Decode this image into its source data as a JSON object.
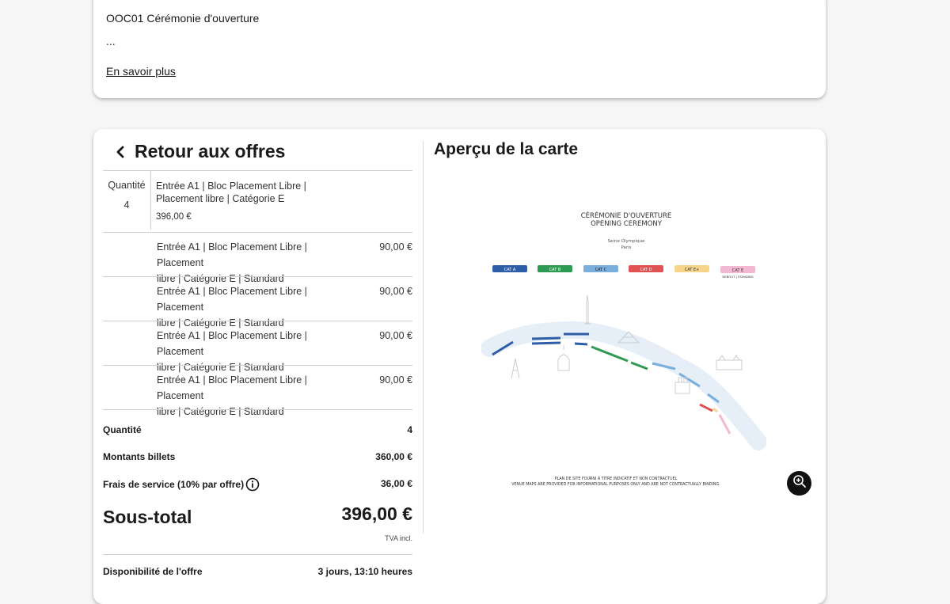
{
  "event": {
    "title": "OOC01 Cérémonie d'ouverture",
    "ellipsis": "...",
    "more_link": "En savoir plus"
  },
  "offers": {
    "back_label": "Retour aux offres",
    "quantity_label": "Quantité",
    "quantity_value": "4",
    "main_offer_line1": "Entrée A1 | Bloc Placement Libre |",
    "main_offer_line2": "Placement libre | Catégorie E",
    "main_offer_price": "396,00 €",
    "items": [
      {
        "line1": "Entrée A1 | Bloc Placement Libre | Placement",
        "line2": "libre | Catégorie E | Standard",
        "price": "90,00 €"
      },
      {
        "line1": "Entrée A1 | Bloc Placement Libre | Placement",
        "line2": "libre | Catégorie E | Standard",
        "price": "90,00 €"
      },
      {
        "line1": "Entrée A1 | Bloc Placement Libre | Placement",
        "line2": "libre | Catégorie E | Standard",
        "price": "90,00 €"
      },
      {
        "line1": "Entrée A1 | Bloc Placement Libre | Placement",
        "line2": "libre | Catégorie E | Standard",
        "price": "90,00 €"
      }
    ]
  },
  "summary": {
    "quantity_label": "Quantité",
    "quantity_value": "4",
    "tickets_label": "Montants billets",
    "tickets_value": "360,00 €",
    "fees_label": "Frais de service (10% par offre)",
    "fees_value": "36,00 €",
    "subtotal_label": "Sous-total",
    "subtotal_value": "396,00 €",
    "tva": "TVA incl.",
    "availability_label": "Disponibilité de l'offre",
    "availability_value": "3 jours, 13:10 heures"
  },
  "map": {
    "title": "Aperçu de la carte",
    "heading_fr": "CÉRÉMONIE D'OUVERTURE",
    "heading_en": "OPENING CEREMONY",
    "venue_line1": "Seine Olympique",
    "venue_line2": "Paris",
    "categories": [
      {
        "label": "CAT A",
        "color": "#2f5ea8"
      },
      {
        "label": "CAT B",
        "color": "#2f9a54"
      },
      {
        "label": "CAT C",
        "color": "#7aaedc"
      },
      {
        "label": "CAT D",
        "color": "#e05252"
      },
      {
        "label": "CAT E+",
        "color": "#f6d58a"
      },
      {
        "label": "CAT E",
        "color": "#f4b9d2"
      }
    ],
    "standing_label": "DEBOUT | STANDING",
    "disclaimer_fr": "PLAN DE SITE FOURNI À TITRE INDICATIF ET NON CONTRACTUEL",
    "disclaimer_en": "VENUE MAPS ARE PROVIDED FOR INFORMATIONAL PURPOSES ONLY AND ARE NOT CONTRACTUALLY BINDING."
  },
  "icons": {
    "back": "chevron-left-icon",
    "info": "info-icon",
    "zoom": "zoom-in-icon"
  }
}
